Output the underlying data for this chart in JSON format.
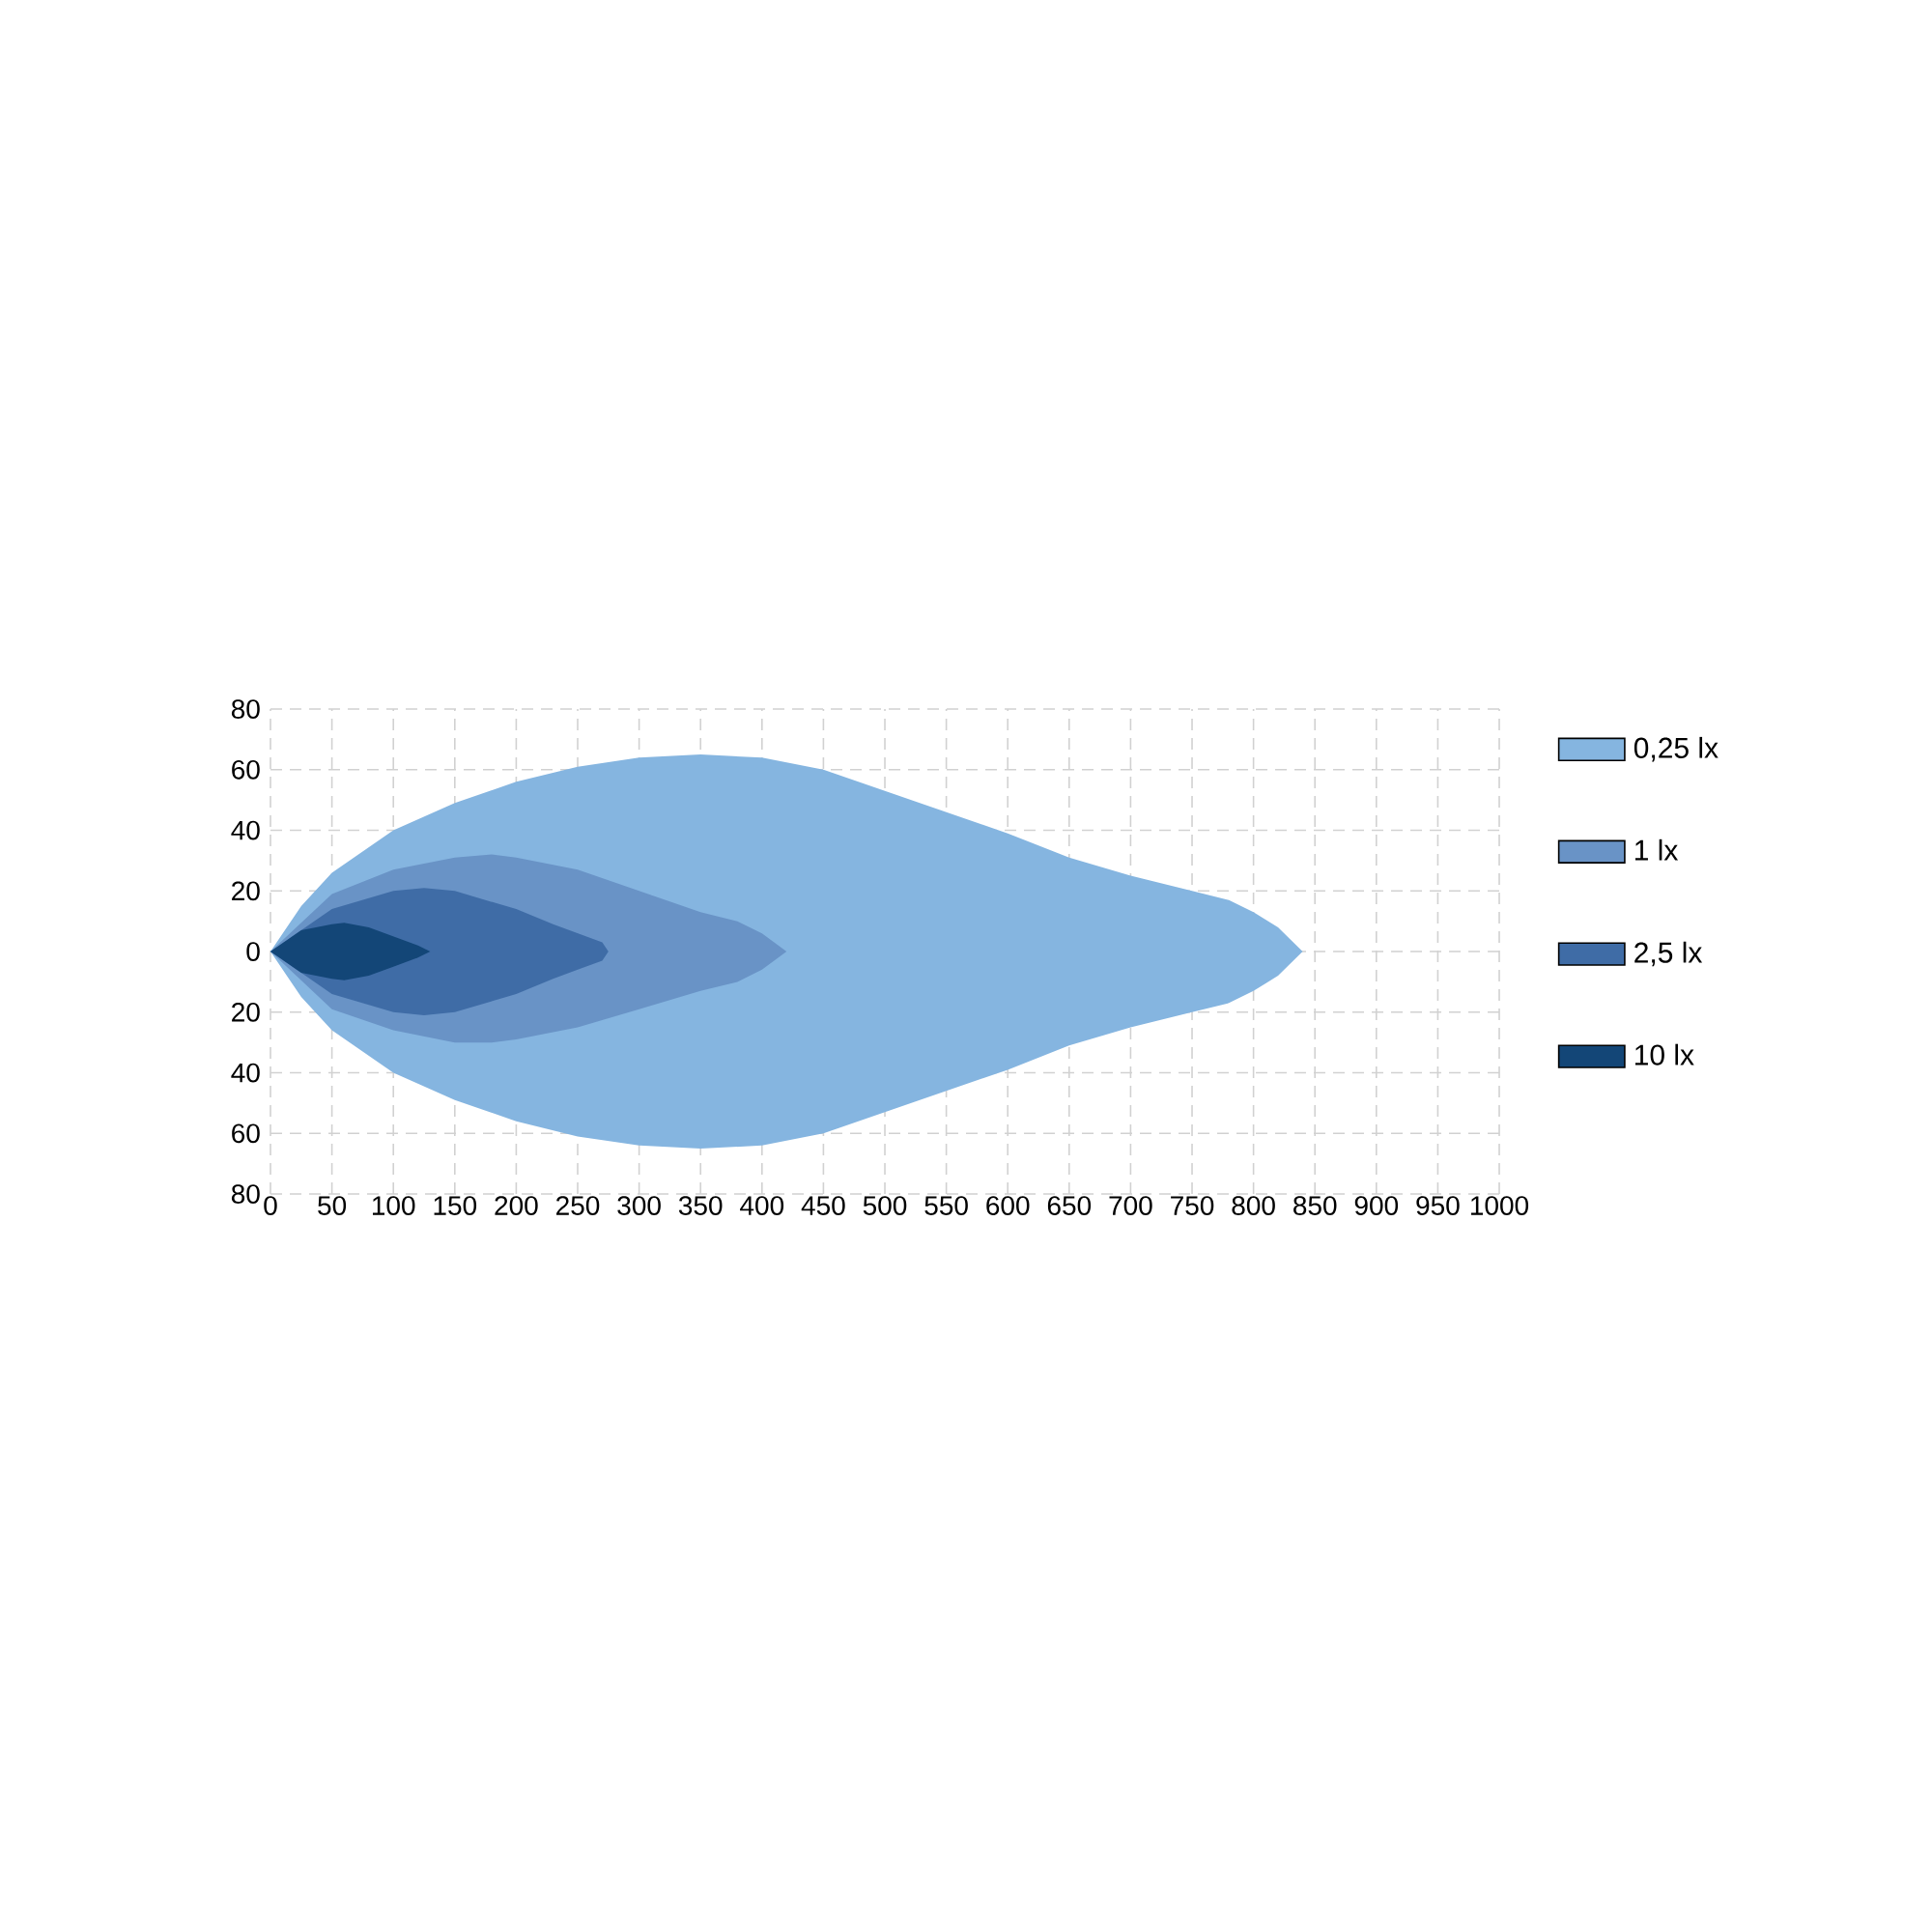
{
  "chart_data": {
    "type": "area",
    "xlim": [
      0,
      1000
    ],
    "ylim": [
      -80,
      80
    ],
    "xticks": [
      0,
      50,
      100,
      150,
      200,
      250,
      300,
      350,
      400,
      450,
      500,
      550,
      600,
      650,
      700,
      750,
      800,
      850,
      900,
      950,
      1000
    ],
    "yticks": [
      {
        "value": -80,
        "label": "80"
      },
      {
        "value": -60,
        "label": "60"
      },
      {
        "value": -40,
        "label": "40"
      },
      {
        "value": -20,
        "label": "20"
      },
      0,
      20,
      40,
      60,
      80
    ],
    "grid": true,
    "legend": "right",
    "series": [
      {
        "name": "0,25 lx",
        "color": "#85b5e0",
        "x": [
          0,
          25,
          50,
          100,
          150,
          200,
          250,
          300,
          350,
          400,
          450,
          500,
          550,
          600,
          650,
          700,
          750,
          780,
          800,
          820,
          840
        ],
        "values": [
          0,
          15,
          26,
          40,
          49,
          56,
          61,
          64,
          65,
          64,
          60,
          53,
          46,
          39,
          31,
          25,
          20,
          17,
          13,
          8,
          0
        ]
      },
      {
        "color": "#85b5e0",
        "x": [
          0,
          25,
          50,
          100,
          150,
          200,
          250,
          300,
          350,
          400,
          450,
          500,
          550,
          600,
          650,
          700,
          750,
          780,
          800,
          820,
          840
        ],
        "values": [
          0,
          -15,
          -26,
          -40,
          -49,
          -56,
          -61,
          -64,
          -65,
          -64,
          -60,
          -53,
          -46,
          -39,
          -31,
          -25,
          -20,
          -17,
          -13,
          -8,
          0
        ]
      },
      {
        "name": "1 lx",
        "color": "#6993c6",
        "x": [
          0,
          50,
          100,
          150,
          180,
          200,
          250,
          300,
          350,
          380,
          400,
          420
        ],
        "values": [
          0,
          19,
          27,
          31,
          32,
          31,
          27,
          20,
          13,
          10,
          6,
          0
        ]
      },
      {
        "color": "#6993c6",
        "x": [
          0,
          50,
          100,
          150,
          180,
          200,
          250,
          300,
          350,
          380,
          400,
          420
        ],
        "values": [
          0,
          -19,
          -26,
          -30,
          -30,
          -29,
          -25,
          -19,
          -13,
          -10,
          -6,
          0
        ]
      },
      {
        "name": "2,5 lx",
        "color": "#3f6ca6",
        "x": [
          0,
          50,
          100,
          125,
          150,
          200,
          230,
          250,
          270,
          275
        ],
        "values": [
          0,
          14,
          20,
          21,
          20,
          14,
          9,
          6,
          3,
          0
        ]
      },
      {
        "color": "#3f6ca6",
        "x": [
          0,
          50,
          100,
          125,
          150,
          200,
          230,
          250,
          270,
          275
        ],
        "values": [
          0,
          -14,
          -20,
          -21,
          -20,
          -14,
          -9,
          -6,
          -3,
          0
        ]
      },
      {
        "name": "10 lx",
        "color": "#134677",
        "x": [
          0,
          25,
          50,
          60,
          80,
          100,
          120,
          130
        ],
        "values": [
          0,
          7,
          9,
          9.5,
          8,
          5,
          2,
          0
        ]
      },
      {
        "color": "#134677",
        "x": [
          0,
          25,
          50,
          60,
          80,
          100,
          120,
          130
        ],
        "values": [
          0,
          -7,
          -9,
          -9.5,
          -8,
          -5,
          -2,
          0
        ]
      }
    ]
  }
}
